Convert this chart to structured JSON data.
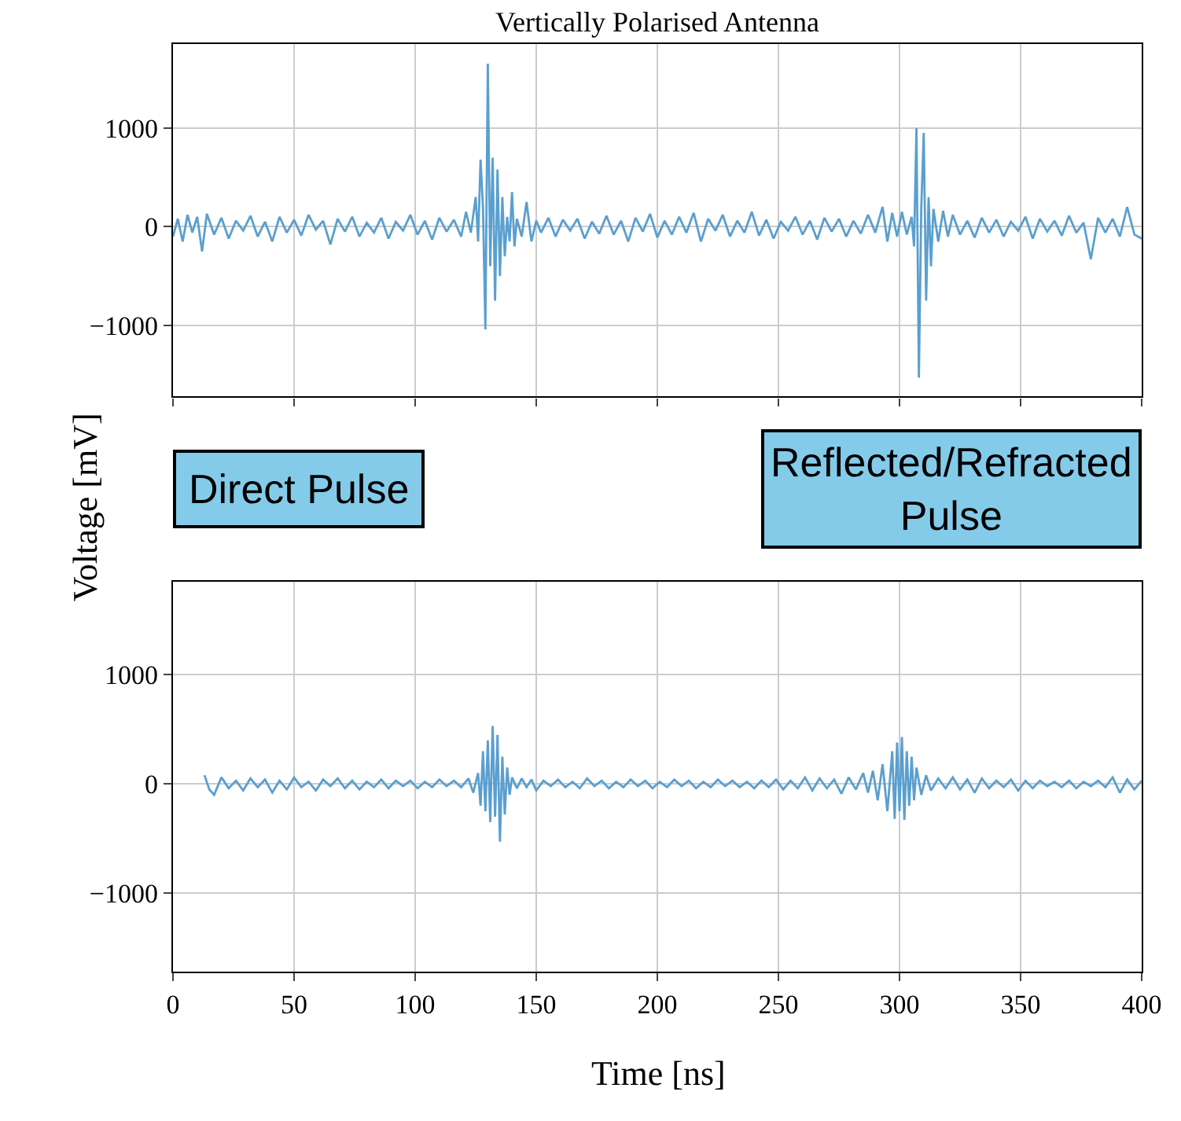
{
  "chart_data": [
    {
      "type": "line",
      "title": "Vertically Polarised Antenna",
      "ylabel": "Voltage [mV]",
      "color": "#5a9fcf",
      "grid": true,
      "tick_labels": "y",
      "xlim": [
        0,
        400
      ],
      "xticks": [
        0,
        50,
        100,
        150,
        200,
        250,
        300,
        350,
        400
      ],
      "ylim": [
        -1720,
        1850
      ],
      "yticks": [
        {
          "value": -1000,
          "label": "−1000"
        },
        0,
        1000
      ],
      "annotations": [
        "Direct Pulse",
        "Reflected/Refracted Pulse"
      ],
      "x": [
        0,
        2,
        4,
        6,
        8,
        10,
        12,
        14,
        17,
        20,
        23,
        26,
        29,
        32,
        35,
        38,
        41,
        44,
        47,
        50,
        53,
        56,
        59,
        62,
        65,
        68,
        71,
        74,
        77,
        80,
        83,
        86,
        89,
        92,
        95,
        98,
        101,
        104,
        107,
        110,
        113,
        116,
        119,
        121,
        123,
        125,
        126,
        127,
        128,
        129,
        130,
        131,
        132,
        133,
        134,
        135,
        136,
        137,
        138,
        139,
        140,
        141,
        142,
        144,
        146,
        148,
        150,
        152,
        155,
        158,
        161,
        164,
        167,
        170,
        173,
        176,
        179,
        182,
        185,
        188,
        191,
        194,
        197,
        200,
        203,
        206,
        209,
        212,
        215,
        218,
        221,
        224,
        227,
        230,
        233,
        236,
        239,
        242,
        245,
        248,
        251,
        254,
        257,
        260,
        263,
        266,
        269,
        272,
        275,
        278,
        281,
        284,
        287,
        290,
        293,
        295,
        297,
        299,
        301,
        303,
        305,
        306,
        307,
        308,
        309,
        310,
        311,
        312,
        313,
        314,
        316,
        318,
        320,
        322,
        325,
        328,
        331,
        334,
        337,
        340,
        343,
        346,
        349,
        352,
        355,
        358,
        361,
        364,
        367,
        370,
        373,
        376,
        379,
        382,
        385,
        388,
        391,
        394,
        397,
        400
      ],
      "values": [
        -100,
        80,
        -150,
        120,
        -60,
        100,
        -250,
        130,
        -80,
        90,
        -120,
        60,
        -40,
        110,
        -100,
        50,
        -150,
        100,
        -60,
        70,
        -90,
        120,
        -30,
        60,
        -180,
        80,
        -50,
        100,
        -100,
        40,
        -60,
        90,
        -120,
        50,
        -40,
        120,
        -80,
        60,
        -130,
        90,
        -50,
        70,
        -100,
        150,
        -60,
        300,
        -150,
        680,
        200,
        -1040,
        1650,
        -400,
        700,
        -750,
        580,
        -500,
        300,
        -300,
        100,
        -150,
        350,
        -200,
        80,
        -100,
        250,
        -150,
        60,
        -60,
        90,
        -100,
        70,
        -40,
        80,
        -120,
        50,
        -70,
        110,
        -80,
        60,
        -150,
        90,
        -50,
        130,
        -110,
        60,
        -80,
        100,
        -60,
        140,
        -150,
        80,
        -40,
        120,
        -100,
        60,
        -60,
        150,
        -90,
        70,
        -120,
        50,
        -40,
        100,
        -80,
        60,
        -130,
        90,
        -50,
        80,
        -100,
        60,
        -70,
        120,
        -60,
        200,
        -150,
        140,
        -100,
        150,
        -80,
        100,
        -200,
        1000,
        -1530,
        200,
        950,
        -750,
        300,
        -400,
        180,
        -150,
        160,
        -100,
        120,
        -80,
        60,
        -110,
        90,
        -60,
        70,
        -100,
        50,
        -40,
        100,
        -120,
        80,
        -50,
        60,
        -90,
        110,
        -60,
        40,
        -330,
        90,
        -60,
        80,
        -100,
        200,
        -80,
        -120
      ]
    },
    {
      "type": "line",
      "xlabel": "Time [ns]",
      "color": "#5a9fcf",
      "grid": true,
      "xlim": [
        0,
        400
      ],
      "xticks": [
        0,
        50,
        100,
        150,
        200,
        250,
        300,
        350,
        400
      ],
      "ylim": [
        -1720,
        1850
      ],
      "yticks": [
        {
          "value": -1000,
          "label": "−1000"
        },
        0,
        1000
      ],
      "x": [
        13,
        15,
        17,
        20,
        23,
        26,
        29,
        32,
        35,
        38,
        41,
        44,
        47,
        50,
        53,
        56,
        59,
        62,
        65,
        68,
        71,
        74,
        77,
        80,
        83,
        86,
        89,
        92,
        95,
        98,
        101,
        104,
        107,
        110,
        113,
        116,
        119,
        122,
        124,
        126,
        127,
        128,
        129,
        130,
        131,
        132,
        133,
        134,
        135,
        136,
        137,
        138,
        139,
        140,
        142,
        144,
        146,
        148,
        150,
        153,
        156,
        159,
        162,
        165,
        168,
        171,
        174,
        177,
        180,
        183,
        186,
        189,
        192,
        195,
        198,
        201,
        204,
        207,
        210,
        213,
        216,
        219,
        222,
        225,
        228,
        231,
        234,
        237,
        240,
        243,
        246,
        249,
        252,
        255,
        258,
        261,
        264,
        267,
        270,
        273,
        276,
        279,
        282,
        285,
        287,
        289,
        291,
        293,
        295,
        297,
        298,
        299,
        300,
        301,
        302,
        303,
        304,
        305,
        306,
        307,
        309,
        311,
        313,
        316,
        319,
        322,
        325,
        328,
        331,
        334,
        337,
        340,
        343,
        346,
        349,
        352,
        355,
        358,
        361,
        364,
        367,
        370,
        373,
        376,
        379,
        382,
        385,
        388,
        391,
        394,
        397,
        400
      ],
      "values": [
        80,
        -50,
        -100,
        60,
        -40,
        30,
        -60,
        50,
        -30,
        40,
        -80,
        30,
        -50,
        60,
        -30,
        20,
        -60,
        40,
        -20,
        50,
        -40,
        30,
        -50,
        20,
        -30,
        40,
        -40,
        30,
        -20,
        30,
        -40,
        20,
        -30,
        40,
        -20,
        30,
        -30,
        50,
        -80,
        100,
        -200,
        300,
        -250,
        400,
        -350,
        530,
        -300,
        450,
        -530,
        250,
        -280,
        150,
        -100,
        60,
        -40,
        50,
        -30,
        40,
        -60,
        30,
        -20,
        40,
        -30,
        20,
        -40,
        50,
        -20,
        30,
        -40,
        20,
        -30,
        40,
        -20,
        30,
        -40,
        20,
        -30,
        40,
        -20,
        30,
        -40,
        20,
        -30,
        40,
        -20,
        30,
        -30,
        20,
        -40,
        30,
        -30,
        40,
        -50,
        30,
        -40,
        60,
        -60,
        50,
        -40,
        40,
        -90,
        60,
        -50,
        100,
        -80,
        120,
        -150,
        180,
        -250,
        300,
        -320,
        380,
        -250,
        430,
        -330,
        300,
        -200,
        250,
        -150,
        150,
        -100,
        80,
        -60,
        50,
        -40,
        60,
        -50,
        40,
        -80,
        50,
        -40,
        30,
        -30,
        40,
        -60,
        30,
        -40,
        30,
        -20,
        20,
        -30,
        30,
        -40,
        20,
        -20,
        30,
        -30,
        60,
        -80,
        40,
        -50,
        30
      ]
    }
  ]
}
